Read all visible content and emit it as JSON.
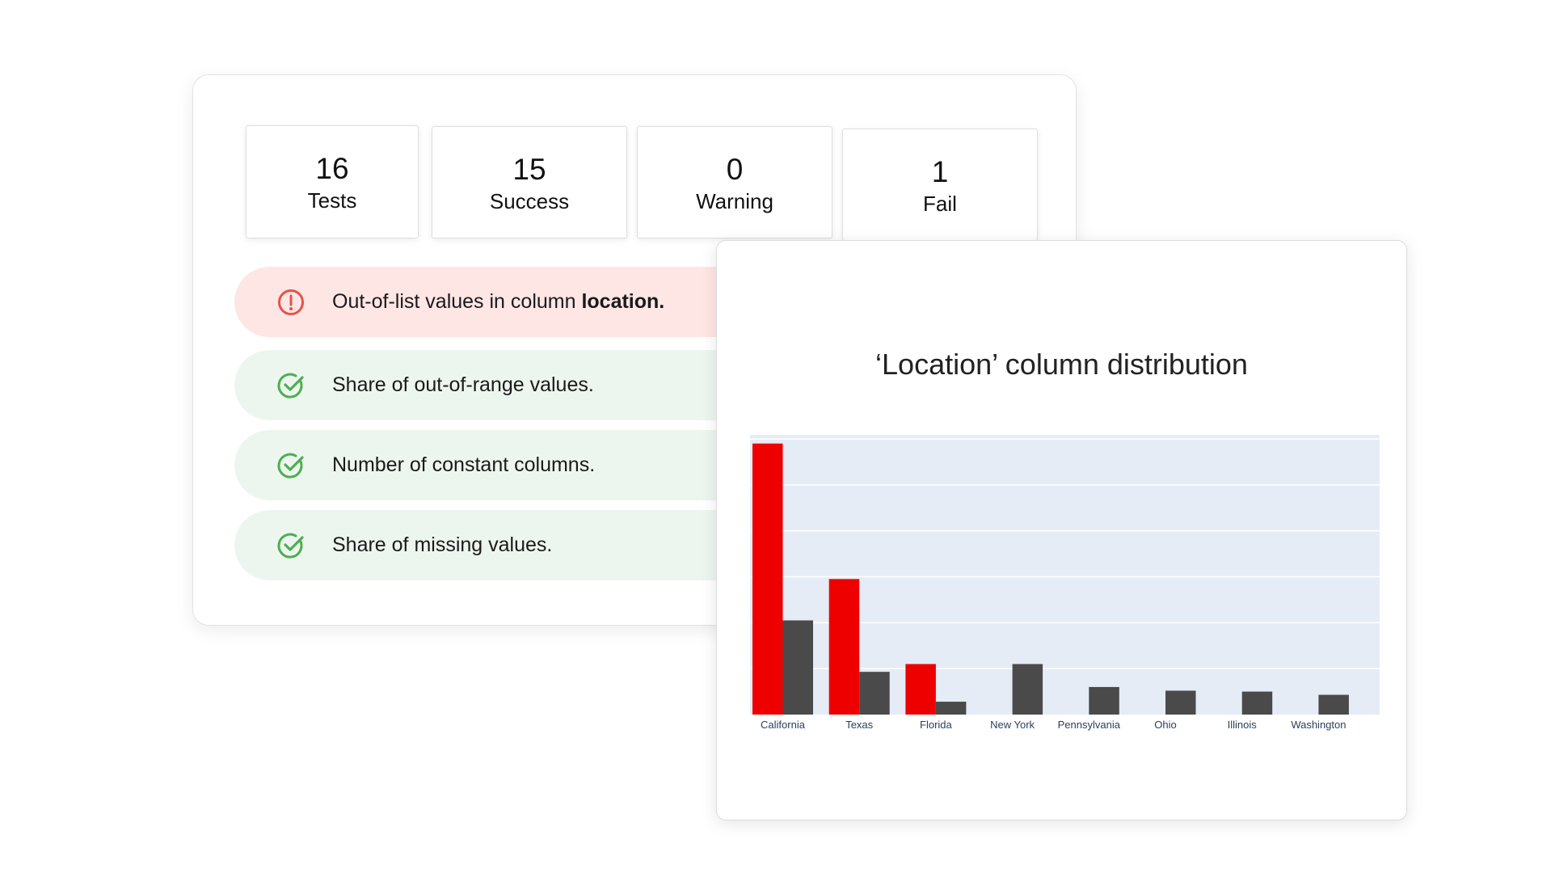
{
  "summary": {
    "tests": {
      "value": "16",
      "label": "Tests"
    },
    "success": {
      "value": "15",
      "label": "Success"
    },
    "warning": {
      "value": "0",
      "label": "Warning"
    },
    "fail": {
      "value": "1",
      "label": "Fail"
    }
  },
  "tests": [
    {
      "status": "fail",
      "text_prefix": "Out-of-list values in column ",
      "text_bold": "location."
    },
    {
      "status": "success",
      "text_prefix": "Share of out-of-range values.",
      "text_bold": ""
    },
    {
      "status": "success",
      "text_prefix": "Number of constant columns.",
      "text_bold": ""
    },
    {
      "status": "success",
      "text_prefix": "Share of missing values.",
      "text_bold": ""
    }
  ],
  "colors": {
    "fail": "#e8e8e8",
    "fail_icon": "#e5534b",
    "success_icon": "#4caf50",
    "current_bar": "#ee0000",
    "reference_bar": "#4a4a4a",
    "plot_bg": "#e5ecf6"
  },
  "chart_data": {
    "type": "bar",
    "title": "‘Location’ column distribution",
    "categories": [
      "California",
      "Texas",
      "Florida",
      "New York",
      "Pennsylvania",
      "Ohio",
      "Illinois",
      "Washington"
    ],
    "series": [
      {
        "values": [
          59,
          29.5,
          11,
          0,
          0,
          0,
          0,
          0
        ]
      },
      {
        "values": [
          20.5,
          9.3,
          2.8,
          11,
          6,
          5.2,
          5,
          4.3
        ]
      }
    ],
    "ylim": [
      0,
      60
    ],
    "xlabel": "",
    "ylabel": "",
    "grid": true,
    "y_ticks_visible": false
  }
}
